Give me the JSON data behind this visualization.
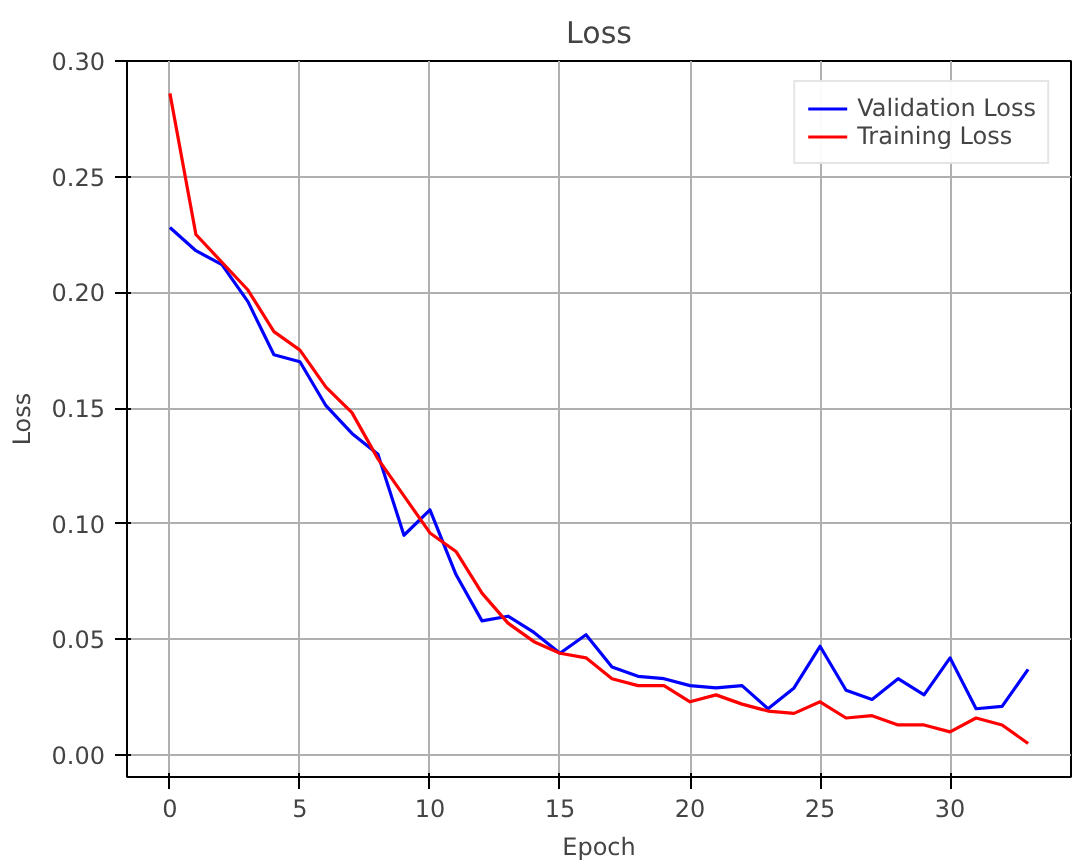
{
  "chart_data": {
    "type": "line",
    "title": "Loss",
    "xlabel": "Epoch",
    "ylabel": "Loss",
    "x": [
      0,
      1,
      2,
      3,
      4,
      5,
      6,
      7,
      8,
      9,
      10,
      11,
      12,
      13,
      14,
      15,
      16,
      17,
      18,
      19,
      20,
      21,
      22,
      23,
      24,
      25,
      26,
      27,
      28,
      29,
      30,
      31,
      32,
      33
    ],
    "series": [
      {
        "name": "Validation Loss",
        "color": "#0000ff",
        "values": [
          0.228,
          0.218,
          0.212,
          0.196,
          0.173,
          0.17,
          0.151,
          0.139,
          0.13,
          0.095,
          0.106,
          0.078,
          0.058,
          0.06,
          0.053,
          0.044,
          0.052,
          0.038,
          0.034,
          0.033,
          0.03,
          0.029,
          0.03,
          0.02,
          0.029,
          0.047,
          0.028,
          0.024,
          0.033,
          0.026,
          0.042,
          0.02,
          0.021,
          0.037
        ]
      },
      {
        "name": "Training Loss",
        "color": "#ff0000",
        "values": [
          0.286,
          0.225,
          0.213,
          0.201,
          0.183,
          0.175,
          0.159,
          0.148,
          0.128,
          0.112,
          0.096,
          0.088,
          0.07,
          0.057,
          0.049,
          0.044,
          0.042,
          0.033,
          0.03,
          0.03,
          0.023,
          0.026,
          0.022,
          0.019,
          0.018,
          0.023,
          0.016,
          0.017,
          0.013,
          0.013,
          0.01,
          0.016,
          0.013,
          0.005
        ]
      }
    ],
    "xlim": [
      -1.65,
      34.65
    ],
    "ylim": [
      -0.0095,
      0.3
    ],
    "xticks": [
      0,
      5,
      10,
      15,
      20,
      25,
      30
    ],
    "yticks": [
      {
        "value": 0,
        "label": "0.00"
      },
      0.05,
      {
        "value": 0.1,
        "label": "0.10"
      },
      0.15,
      {
        "value": 0.2,
        "label": "0.20"
      },
      0.25,
      {
        "value": 0.3,
        "label": "0.30"
      }
    ],
    "grid": true,
    "legend": "top right"
  }
}
